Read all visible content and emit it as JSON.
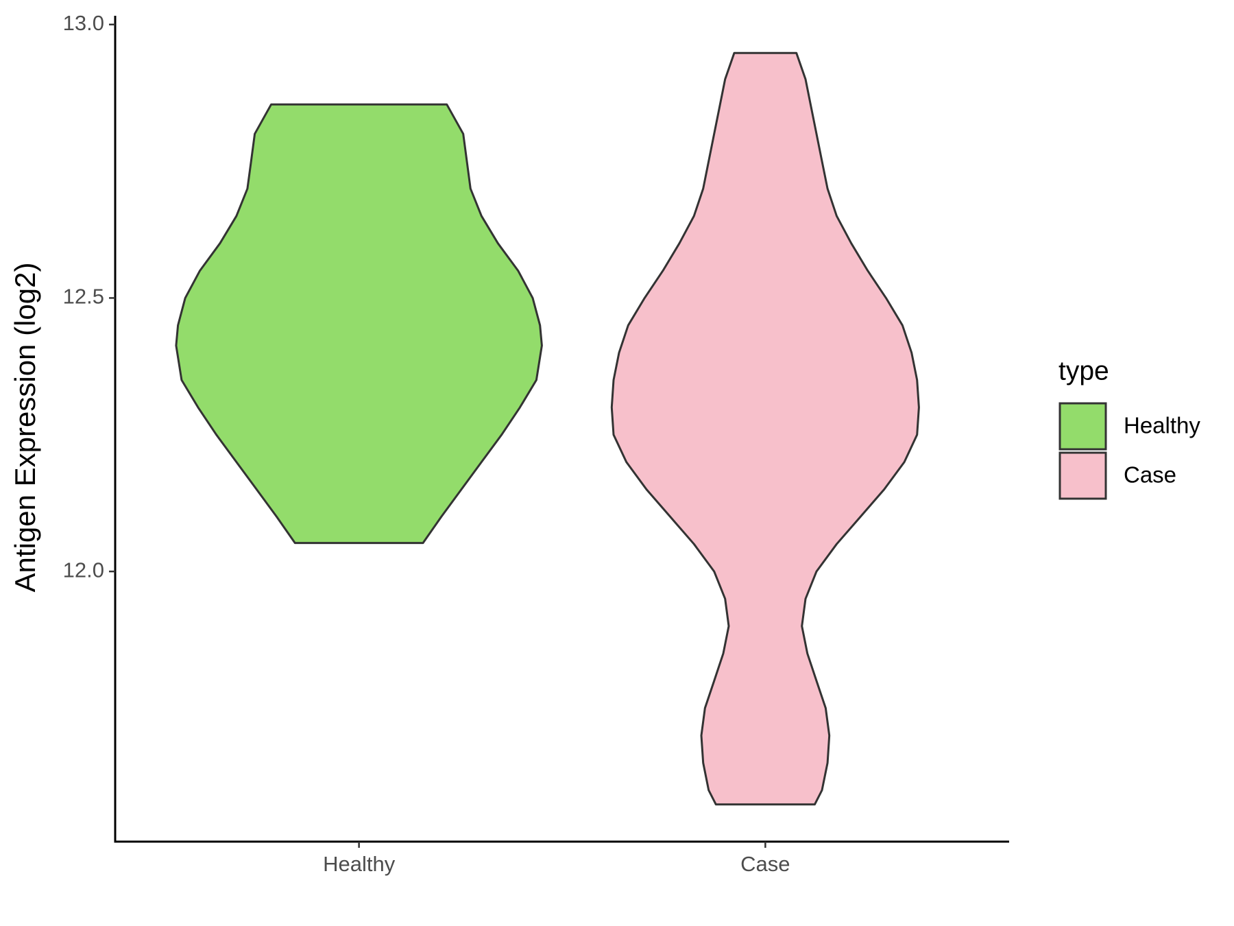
{
  "chart_data": {
    "type": "violin",
    "y_label": "Antigen Expression (log2)",
    "categories": [
      "Healthy",
      "Case"
    ],
    "legend_title": "type",
    "legend_position": "right",
    "ylim": [
      11.506,
      13.016
    ],
    "yticks": [
      {
        "value": 12,
        "label": "12.0"
      },
      12.5,
      {
        "value": 13,
        "label": "13.0"
      }
    ],
    "series": [
      {
        "name": "Healthy",
        "color": "#93dc6b",
        "y": [
          12.854,
          12.8,
          12.75,
          12.7,
          12.65,
          12.6,
          12.55,
          12.5,
          12.45,
          12.413,
          12.35,
          12.3,
          12.25,
          12.2,
          12.15,
          12.1,
          12.052
        ],
        "density": [
          0.48,
          0.57,
          0.59,
          0.61,
          0.67,
          0.76,
          0.87,
          0.95,
          0.99,
          1.0,
          0.97,
          0.88,
          0.78,
          0.67,
          0.56,
          0.45,
          0.35
        ]
      },
      {
        "name": "Case",
        "color": "#f7c0cb",
        "y": [
          12.948,
          12.9,
          12.85,
          12.8,
          12.75,
          12.7,
          12.65,
          12.6,
          12.55,
          12.5,
          12.45,
          12.4,
          12.35,
          12.3,
          12.25,
          12.2,
          12.15,
          12.1,
          12.05,
          12.0,
          11.95,
          11.9,
          11.85,
          11.8,
          11.75,
          11.7,
          11.65,
          11.6,
          11.574
        ],
        "density": [
          0.17,
          0.22,
          0.25,
          0.28,
          0.31,
          0.34,
          0.39,
          0.47,
          0.56,
          0.66,
          0.75,
          0.8,
          0.83,
          0.84,
          0.83,
          0.76,
          0.65,
          0.52,
          0.39,
          0.28,
          0.22,
          0.2,
          0.23,
          0.28,
          0.33,
          0.35,
          0.34,
          0.31,
          0.27
        ]
      }
    ]
  }
}
